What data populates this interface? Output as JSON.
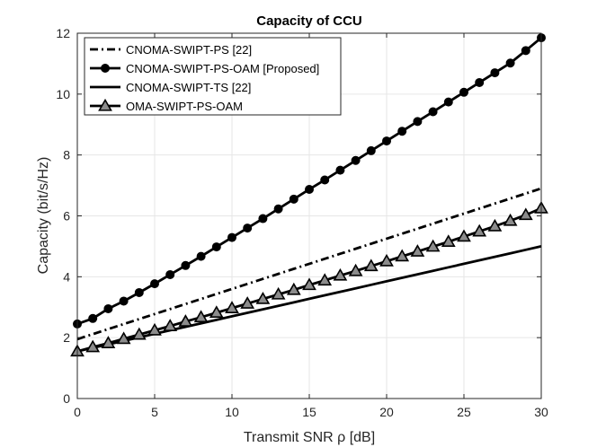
{
  "chart_data": {
    "type": "line",
    "title": "Capacity of CCU",
    "xlabel": "Transmit SNR  ρ [dB]",
    "ylabel": "Capacity (bit/s/Hz)",
    "xlim": [
      0,
      30
    ],
    "ylim": [
      0,
      12
    ],
    "xticks": [
      0,
      5,
      10,
      15,
      20,
      25,
      30
    ],
    "yticks": [
      0,
      2,
      4,
      6,
      8,
      10,
      12
    ],
    "grid": true,
    "legend_position": "top-left",
    "x": [
      0,
      1,
      2,
      3,
      4,
      5,
      6,
      7,
      8,
      9,
      10,
      11,
      12,
      13,
      14,
      15,
      16,
      17,
      18,
      19,
      20,
      21,
      22,
      23,
      24,
      25,
      26,
      27,
      28,
      29,
      30
    ],
    "series": [
      {
        "name": "CNOMA-SWIPT-PS [22]",
        "style": "dashdot",
        "marker": "none",
        "values": [
          1.95,
          2.115,
          2.28,
          2.445,
          2.61,
          2.775,
          2.94,
          3.105,
          3.27,
          3.435,
          3.6,
          3.765,
          3.93,
          4.095,
          4.26,
          4.425,
          4.59,
          4.755,
          4.92,
          5.085,
          5.25,
          5.415,
          5.58,
          5.745,
          5.91,
          6.075,
          6.24,
          6.405,
          6.57,
          6.735,
          6.9
        ]
      },
      {
        "name": "CNOMA-SWIPT-PS-OAM [Proposed]",
        "style": "solid",
        "marker": "circle",
        "values": [
          2.45,
          2.63,
          2.95,
          3.2,
          3.48,
          3.77,
          4.07,
          4.37,
          4.67,
          4.98,
          5.29,
          5.6,
          5.91,
          6.23,
          6.55,
          6.87,
          7.18,
          7.5,
          7.82,
          8.14,
          8.46,
          8.78,
          9.1,
          9.42,
          9.74,
          10.06,
          10.38,
          10.7,
          11.02,
          11.43,
          11.85
        ]
      },
      {
        "name": "CNOMA-SWIPT-TS [22]",
        "style": "solid",
        "marker": "none",
        "values": [
          1.55,
          1.665,
          1.78,
          1.895,
          2.01,
          2.125,
          2.24,
          2.355,
          2.47,
          2.585,
          2.7,
          2.815,
          2.93,
          3.045,
          3.16,
          3.275,
          3.39,
          3.505,
          3.62,
          3.735,
          3.85,
          3.965,
          4.08,
          4.195,
          4.31,
          4.425,
          4.54,
          4.655,
          4.77,
          4.885,
          5.0
        ]
      },
      {
        "name": "OMA-SWIPT-PS-OAM",
        "style": "solid",
        "marker": "triangle",
        "values": [
          1.55,
          1.69,
          1.82,
          1.96,
          2.1,
          2.24,
          2.38,
          2.53,
          2.67,
          2.82,
          2.97,
          3.12,
          3.27,
          3.42,
          3.57,
          3.73,
          3.88,
          4.04,
          4.19,
          4.35,
          4.51,
          4.67,
          4.83,
          4.99,
          5.15,
          5.32,
          5.49,
          5.66,
          5.84,
          6.03,
          6.25
        ]
      }
    ]
  }
}
